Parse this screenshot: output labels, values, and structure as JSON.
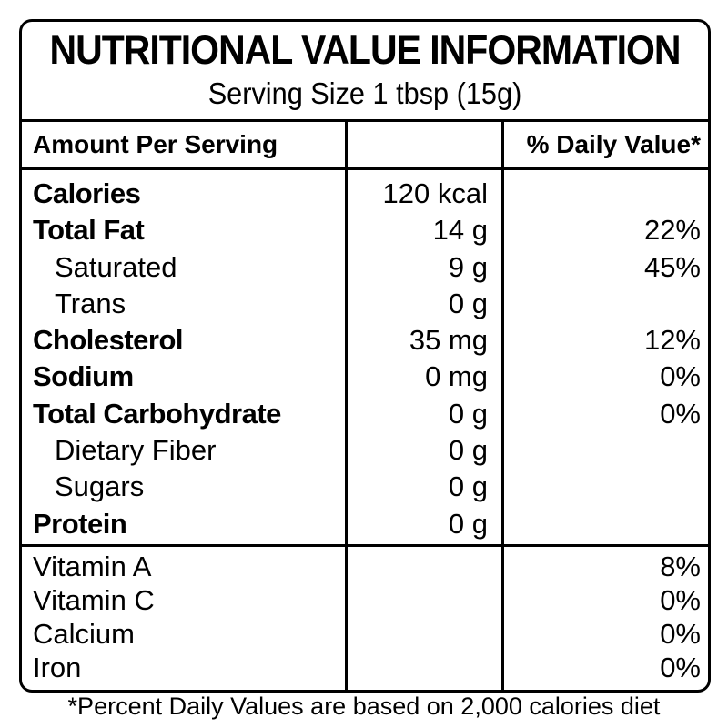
{
  "title": "NUTRITIONAL VALUE INFORMATION",
  "serving": "Serving Size 1 tbsp (15g)",
  "headers": {
    "amount": "Amount Per Serving",
    "dv": "% Daily Value*"
  },
  "nutrients": [
    {
      "name": "Calories",
      "amount": "120 kcal",
      "dv": ""
    },
    {
      "name": "Total Fat",
      "amount": "14 g",
      "dv": "22%"
    },
    {
      "name": "Saturated",
      "amount": "9 g",
      "dv": "45%"
    },
    {
      "name": "Trans",
      "amount": "0 g",
      "dv": ""
    },
    {
      "name": "Cholesterol",
      "amount": "35 mg",
      "dv": "12%"
    },
    {
      "name": "Sodium",
      "amount": "0 mg",
      "dv": "0%"
    },
    {
      "name": "Total Carbohydrate",
      "amount": "0 g",
      "dv": "0%"
    },
    {
      "name": "Dietary Fiber",
      "amount": "0 g",
      "dv": ""
    },
    {
      "name": "Sugars",
      "amount": "0 g",
      "dv": ""
    },
    {
      "name": "Protein",
      "amount": "0 g",
      "dv": ""
    }
  ],
  "vitamins": [
    {
      "name": "Vitamin A",
      "dv": "8%"
    },
    {
      "name": "Vitamin C",
      "dv": "0%"
    },
    {
      "name": "Calcium",
      "dv": "0%"
    },
    {
      "name": "Iron",
      "dv": "0%"
    }
  ],
  "footnote": "*Percent Daily Values are based on 2,000 calories diet"
}
